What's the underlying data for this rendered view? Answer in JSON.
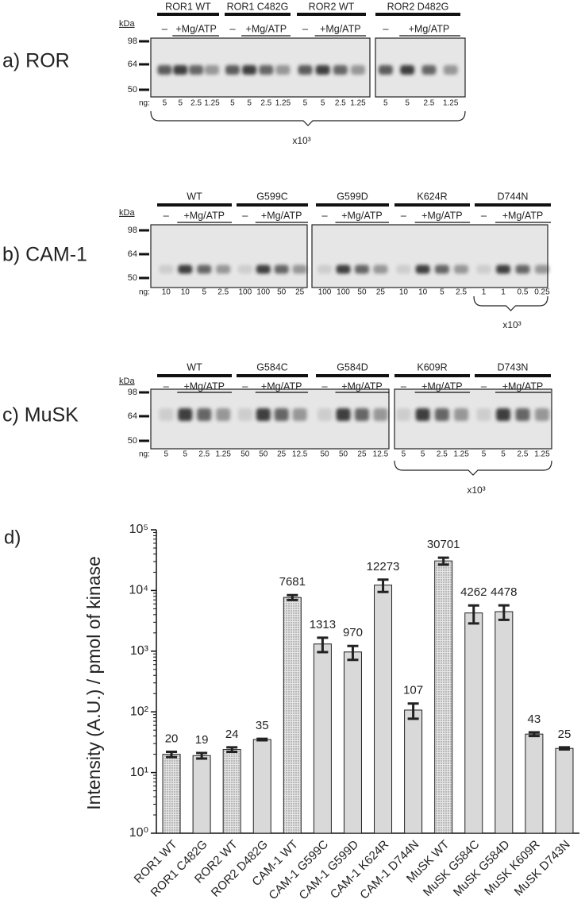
{
  "blots": [
    {
      "label": "a) ROR",
      "kda": "kDa",
      "markers": [
        "98",
        "64",
        "50"
      ],
      "minus": "–",
      "plus": "+Mg/ATP",
      "ng_prefix": "ng:",
      "multiplier": "x10³",
      "groups": [
        {
          "name": "ROR1 WT",
          "ng": [
            "5",
            "5",
            "2.5",
            "1.25"
          ]
        },
        {
          "name": "ROR1 C482G",
          "ng": [
            "5",
            "5",
            "2.5",
            "1.25"
          ]
        },
        {
          "name": "ROR2 WT",
          "ng": [
            "5",
            "5",
            "2.5",
            "1.25"
          ]
        },
        {
          "name": "ROR2 D482G",
          "ng": [
            "5",
            "5",
            "2.5",
            "1.25"
          ]
        }
      ]
    },
    {
      "label": "b) CAM-1",
      "kda": "kDa",
      "markers": [
        "98",
        "64",
        "50"
      ],
      "minus": "–",
      "plus": "+Mg/ATP",
      "ng_prefix": "ng:",
      "multiplier": "x10³",
      "groups": [
        {
          "name": "WT",
          "ng": [
            "10",
            "10",
            "5",
            "2.5"
          ]
        },
        {
          "name": "G599C",
          "ng": [
            "100",
            "100",
            "50",
            "25"
          ]
        },
        {
          "name": "G599D",
          "ng": [
            "100",
            "100",
            "50",
            "25"
          ]
        },
        {
          "name": "K624R",
          "ng": [
            "10",
            "10",
            "5",
            "2.5"
          ]
        },
        {
          "name": "D744N",
          "ng": [
            "1",
            "1",
            "0.5",
            "0.25"
          ]
        }
      ]
    },
    {
      "label": "c) MuSK",
      "kda": "kDa",
      "markers": [
        "98",
        "64",
        "50"
      ],
      "minus": "–",
      "plus": "+Mg/ATP",
      "ng_prefix": "ng:",
      "multiplier": "x10³",
      "groups": [
        {
          "name": "WT",
          "ng": [
            "5",
            "5",
            "2.5",
            "1.25"
          ]
        },
        {
          "name": "G584C",
          "ng": [
            "50",
            "50",
            "25",
            "12.5"
          ]
        },
        {
          "name": "G584D",
          "ng": [
            "50",
            "50",
            "25",
            "12.5"
          ]
        },
        {
          "name": "K609R",
          "ng": [
            "5",
            "5",
            "2.5",
            "1.25"
          ]
        },
        {
          "name": "D743N",
          "ng": [
            "5",
            "5",
            "2.5",
            "1.25"
          ]
        }
      ]
    }
  ],
  "chart_data": {
    "type": "bar",
    "panel_label": "d)",
    "y_label": "Intensity (A.U.)  / pmol of kinase",
    "categories": [
      "ROR1 WT",
      "ROR1 C482G",
      "ROR2 WT",
      "ROR2 D482G",
      "CAM-1 WT",
      "CAM-1 G599C",
      "CAM-1 G599D",
      "CAM-1 K624R",
      "CAM-1 D744N",
      "MuSK WT",
      "MuSK G584C",
      "MuSK G584D",
      "MuSK K609R",
      "MuSK D743N"
    ],
    "values": [
      20,
      19,
      24,
      35,
      7681,
      1313,
      970,
      12273,
      107,
      30701,
      4262,
      4478,
      43,
      25
    ],
    "errors": [
      2,
      2,
      2,
      1,
      700,
      350,
      250,
      2800,
      30,
      4000,
      1400,
      1200,
      3,
      1
    ],
    "bar_styles": [
      "stippled",
      "plain",
      "stippled",
      "plain",
      "stippled",
      "plain",
      "plain",
      "plain",
      "plain",
      "stippled",
      "plain",
      "plain",
      "plain",
      "plain"
    ],
    "color": "#d9d9d9",
    "log_scale": true,
    "ylim": [
      1,
      100000
    ],
    "yticks": [
      {
        "value": 1,
        "label": "10⁰"
      },
      {
        "value": 10,
        "label": "10¹"
      },
      {
        "value": 100,
        "label": "10²"
      },
      {
        "value": 1000,
        "label": "10³"
      },
      {
        "value": 10000,
        "label": "10⁴"
      },
      {
        "value": 100000,
        "label": "10⁵"
      }
    ]
  }
}
